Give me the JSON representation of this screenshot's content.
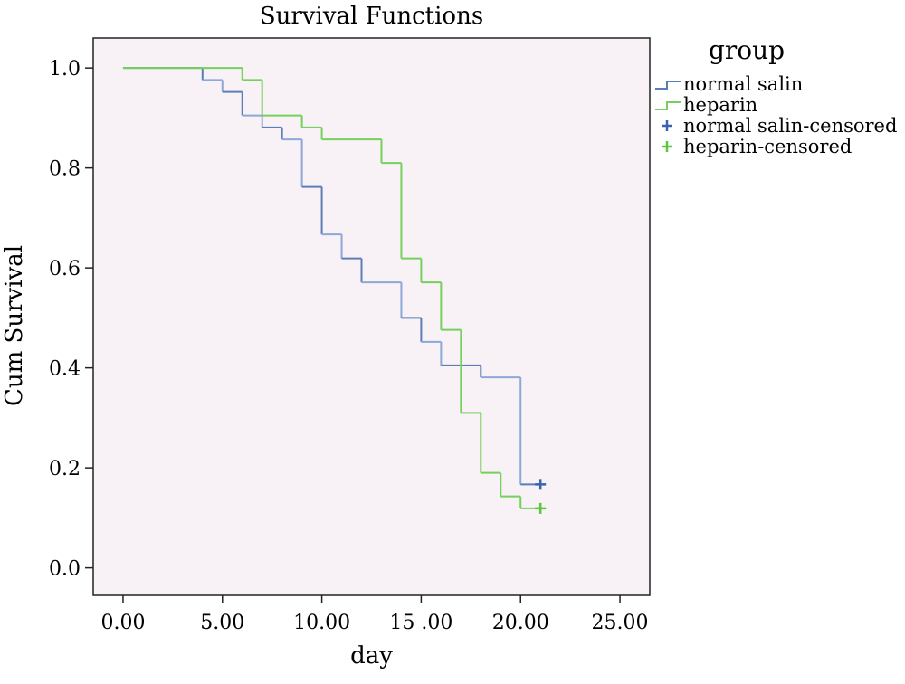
{
  "chart_data": {
    "type": "line",
    "title": "Survival Functions",
    "xlabel": "day",
    "ylabel": "Cum Survival",
    "xlim": [
      -1.5,
      26.5
    ],
    "ylim": [
      -0.055,
      1.06
    ],
    "x_ticks": [
      {
        "value": 0,
        "label": "0.00"
      },
      {
        "value": 5,
        "label": "5.00"
      },
      {
        "value": 10,
        "label": "10.00"
      },
      {
        "value": 15,
        "label": "15 .00"
      },
      {
        "value": 20,
        "label": "20.00"
      },
      {
        "value": 25,
        "label": "25.00"
      }
    ],
    "y_ticks": [
      {
        "value": 0.0,
        "label": "0.0"
      },
      {
        "value": 0.2,
        "label": "0.2"
      },
      {
        "value": 0.4,
        "label": "0.4"
      },
      {
        "value": 0.6,
        "label": "0.6"
      },
      {
        "value": 0.8,
        "label": "0.8"
      },
      {
        "value": 1.0,
        "label": "1.0"
      }
    ],
    "grid": false,
    "plot_background": "#f8f1f5",
    "legend": {
      "title": "group",
      "position": "right",
      "entries": [
        {
          "label": "normal salin",
          "symbol": "step",
          "color": "#5b7fb5"
        },
        {
          "label": "heparin",
          "symbol": "step",
          "color": "#75d05c"
        },
        {
          "label": "normal salin-censored",
          "symbol": "plus",
          "color": "#3a62b0"
        },
        {
          "label": "heparin-censored",
          "symbol": "plus",
          "color": "#5cc63e"
        }
      ]
    },
    "series": [
      {
        "name": "normal salin",
        "color": "#5b7fb5",
        "line_colors": [
          "#5b7fb5",
          "#8da8d8"
        ],
        "steps": [
          [
            0,
            1.0
          ],
          [
            4,
            0.976
          ],
          [
            5,
            0.952
          ],
          [
            6,
            0.905
          ],
          [
            7,
            0.881
          ],
          [
            8,
            0.857
          ],
          [
            9,
            0.762
          ],
          [
            10,
            0.667
          ],
          [
            11,
            0.619
          ],
          [
            12,
            0.571
          ],
          [
            14,
            0.5
          ],
          [
            15,
            0.452
          ],
          [
            16,
            0.405
          ],
          [
            18,
            0.381
          ],
          [
            20,
            0.167
          ]
        ],
        "end_x": 21,
        "censored": [
          [
            21,
            0.167
          ]
        ]
      },
      {
        "name": "heparin",
        "color": "#75d05c",
        "line_colors": [
          "#75d05c",
          "#75d05c"
        ],
        "steps": [
          [
            0,
            1.0
          ],
          [
            6,
            0.976
          ],
          [
            7,
            0.905
          ],
          [
            9,
            0.881
          ],
          [
            10,
            0.857
          ],
          [
            13,
            0.81
          ],
          [
            14,
            0.619
          ],
          [
            15,
            0.571
          ],
          [
            16,
            0.476
          ],
          [
            17,
            0.31
          ],
          [
            18,
            0.19
          ],
          [
            19,
            0.143
          ],
          [
            20,
            0.119
          ]
        ],
        "end_x": 21,
        "censored": [
          [
            21,
            0.119
          ]
        ]
      }
    ]
  }
}
